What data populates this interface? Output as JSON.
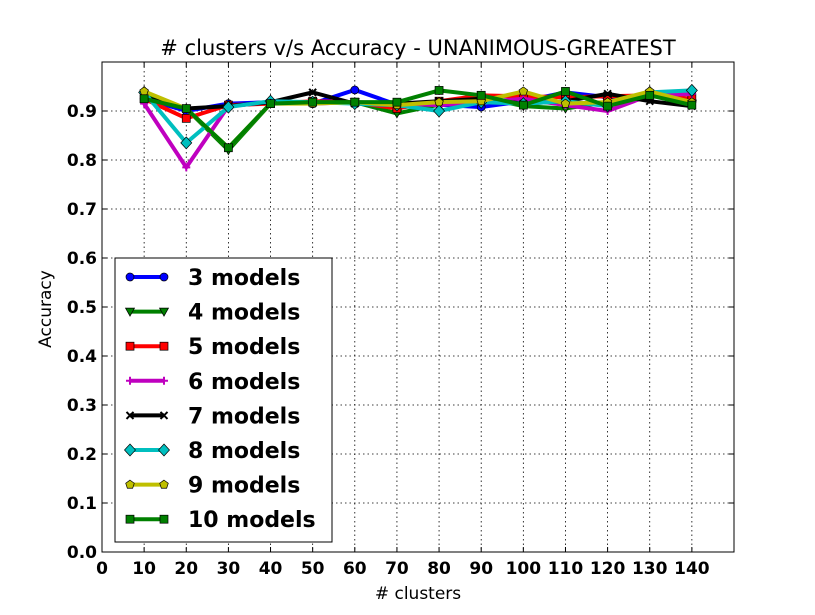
{
  "chart_data": {
    "type": "line",
    "title": "# clusters v/s Accuracy - UNANIMOUS-GREATEST",
    "xlabel": "# clusters",
    "ylabel": "Accuracy",
    "xlim": [
      0,
      150
    ],
    "ylim": [
      0.0,
      1.0
    ],
    "xticks": [
      0,
      10,
      20,
      30,
      40,
      50,
      60,
      70,
      80,
      90,
      100,
      110,
      120,
      130,
      140
    ],
    "yticks": [
      0.0,
      0.1,
      0.2,
      0.3,
      0.4,
      0.5,
      0.6,
      0.7,
      0.8,
      0.9
    ],
    "grid": true,
    "legend_position": "lower-left",
    "x": [
      10,
      20,
      30,
      40,
      50,
      60,
      70,
      80,
      90,
      100,
      110,
      120,
      130,
      140
    ],
    "series": [
      {
        "name": "3 models",
        "color": "#0000ff",
        "marker": "circle",
        "values": [
          0.925,
          0.9,
          0.915,
          0.918,
          0.915,
          0.943,
          0.913,
          0.913,
          0.908,
          0.92,
          0.938,
          0.928,
          0.93,
          0.935
        ]
      },
      {
        "name": "4 models",
        "color": "#008000",
        "marker": "triangle-down",
        "values": [
          0.932,
          0.905,
          0.82,
          0.915,
          0.918,
          0.918,
          0.895,
          0.913,
          0.928,
          0.91,
          0.905,
          0.918,
          0.935,
          0.915
        ]
      },
      {
        "name": "5 models",
        "color": "#ff0000",
        "marker": "square",
        "values": [
          0.925,
          0.885,
          0.912,
          0.915,
          0.92,
          0.918,
          0.905,
          0.92,
          0.932,
          0.93,
          0.928,
          0.93,
          0.932,
          0.925
        ]
      },
      {
        "name": "6 models",
        "color": "#bf00bf",
        "marker": "plus",
        "values": [
          0.915,
          0.785,
          0.91,
          0.918,
          0.915,
          0.918,
          0.915,
          0.912,
          0.918,
          0.925,
          0.912,
          0.9,
          0.932,
          0.935
        ]
      },
      {
        "name": "7 models",
        "color": "#000000",
        "marker": "x",
        "values": [
          0.928,
          0.905,
          0.91,
          0.918,
          0.938,
          0.915,
          0.915,
          0.92,
          0.925,
          0.915,
          0.92,
          0.935,
          0.92,
          0.91
        ]
      },
      {
        "name": "8 models",
        "color": "#00bfbf",
        "marker": "diamond",
        "values": [
          0.938,
          0.835,
          0.908,
          0.92,
          0.918,
          0.915,
          0.912,
          0.9,
          0.918,
          0.915,
          0.92,
          0.91,
          0.938,
          0.942
        ]
      },
      {
        "name": "9 models",
        "color": "#bfbf00",
        "marker": "pentagon",
        "values": [
          0.94,
          0.905,
          0.825,
          0.915,
          0.915,
          0.918,
          0.912,
          0.918,
          0.92,
          0.94,
          0.915,
          0.918,
          0.94,
          0.918
        ]
      },
      {
        "name": "10 models",
        "color": "#008000",
        "marker": "square",
        "values": [
          0.925,
          0.905,
          0.825,
          0.915,
          0.918,
          0.918,
          0.918,
          0.942,
          0.932,
          0.912,
          0.94,
          0.91,
          0.932,
          0.912
        ]
      }
    ]
  }
}
